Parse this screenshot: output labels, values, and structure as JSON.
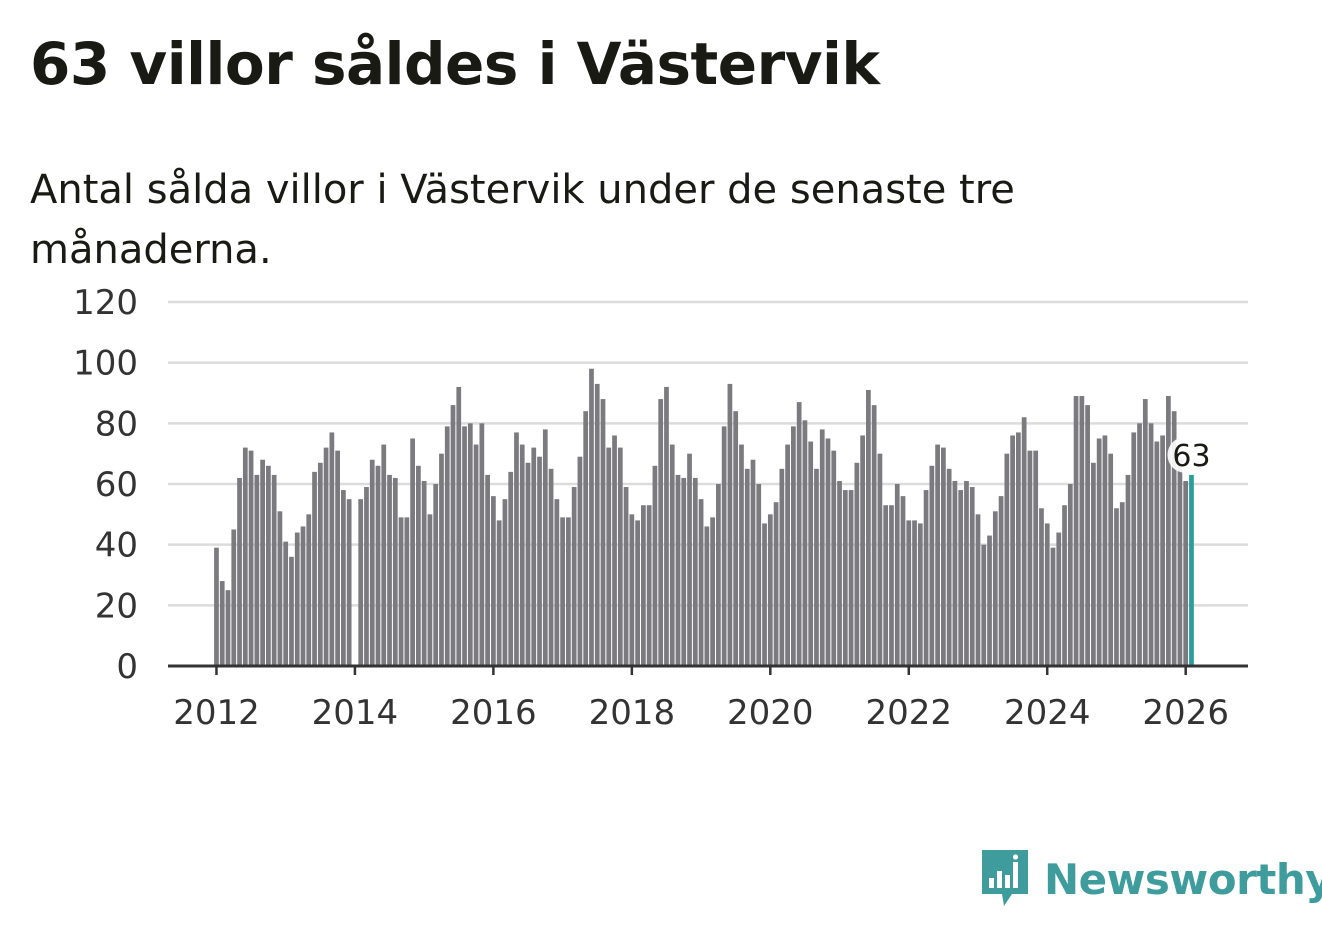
{
  "title": "63 villor såldes i Västervik",
  "subtitle": "Antal sålda villor i Västervik under de senaste tre månaderna.",
  "brand": "Newsworthy",
  "colors": {
    "bar": "#7a7a7f",
    "highlight": "#2a9d9d",
    "grid": "#dcdcdc",
    "axis": "#333333",
    "brand": "#3f9c9c"
  },
  "chart_data": {
    "type": "bar",
    "title": "63 villor såldes i Västervik",
    "subtitle": "Antal sålda villor i Västervik under de senaste tre månaderna.",
    "xlabel": "",
    "ylabel": "",
    "ylim": [
      0,
      120
    ],
    "yticks": [
      0,
      20,
      40,
      60,
      80,
      100,
      120
    ],
    "xticks": [
      2012,
      2014,
      2016,
      2018,
      2020,
      2022,
      2024,
      2026
    ],
    "x_start": 2012.0,
    "x_step": 0.0833333,
    "x_range": [
      2011.3,
      2026.9
    ],
    "grid": true,
    "highlight_index": 169,
    "highlight_label": "63",
    "values": [
      39,
      28,
      25,
      45,
      62,
      72,
      71,
      63,
      68,
      66,
      63,
      51,
      41,
      36,
      44,
      46,
      50,
      64,
      67,
      72,
      77,
      71,
      58,
      55,
      0,
      55,
      59,
      68,
      66,
      73,
      63,
      62,
      49,
      49,
      75,
      66,
      61,
      50,
      60,
      70,
      79,
      86,
      92,
      79,
      80,
      73,
      80,
      63,
      56,
      48,
      55,
      64,
      77,
      73,
      67,
      72,
      69,
      78,
      65,
      55,
      49,
      49,
      59,
      69,
      84,
      98,
      93,
      88,
      72,
      76,
      72,
      59,
      50,
      48,
      53,
      53,
      66,
      88,
      92,
      73,
      63,
      62,
      70,
      62,
      55,
      46,
      49,
      60,
      79,
      93,
      84,
      73,
      65,
      68,
      60,
      47,
      50,
      54,
      65,
      73,
      79,
      87,
      81,
      74,
      65,
      78,
      75,
      71,
      61,
      58,
      58,
      67,
      76,
      91,
      86,
      70,
      53,
      53,
      60,
      56,
      48,
      48,
      47,
      58,
      66,
      73,
      72,
      65,
      61,
      58,
      61,
      59,
      50,
      40,
      43,
      51,
      56,
      70,
      76,
      77,
      82,
      71,
      71,
      52,
      47,
      39,
      44,
      53,
      60,
      89,
      89,
      86,
      67,
      75,
      76,
      70,
      52,
      54,
      63,
      77,
      80,
      88,
      80,
      74,
      76,
      89,
      84,
      68,
      61,
      63
    ]
  }
}
